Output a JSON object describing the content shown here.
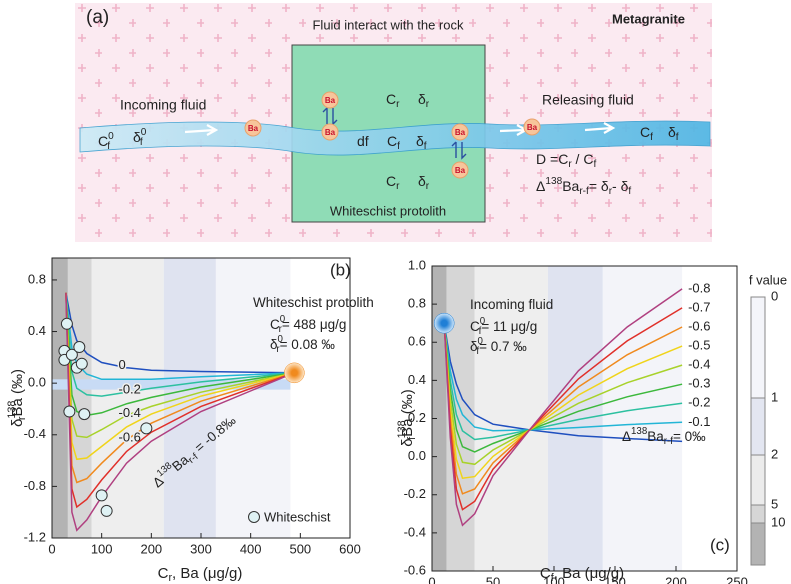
{
  "diagram": {
    "label": "(a)",
    "title": "Fluid interact with the rock",
    "host": "Metagranite",
    "incoming": "Incoming fluid",
    "releasing": "Releasing fluid",
    "box_label": "Whiteschist protolith",
    "ba": "Ba",
    "symbols": [
      [
        {
          "base": "C",
          "sup": "0",
          "sub": "f"
        }
      ],
      [
        {
          "base": "δ",
          "sup": "0",
          "sub": "f"
        }
      ],
      [
        {
          "base": "C",
          "sub": "r"
        }
      ],
      [
        {
          "base": "δ",
          "sub": "r"
        }
      ],
      [
        {
          "base": "df"
        }
      ],
      [
        {
          "base": "C",
          "sub": "f"
        }
      ],
      [
        {
          "base": "δ",
          "sub": "f"
        }
      ],
      [
        {
          "base": "C",
          "sub": "r"
        }
      ],
      [
        {
          "base": "δ",
          "sub": "r"
        }
      ],
      [
        {
          "base": "C",
          "sub": "f"
        }
      ],
      [
        {
          "base": "δ",
          "sub": "f"
        }
      ],
      [
        {
          "base": "D ="
        },
        {
          "base": "C",
          "sub": "r"
        },
        {
          "base": " / C",
          "sub": "f"
        }
      ],
      [
        {
          "base": "Δ",
          "sup": "138"
        },
        {
          "base": "Ba",
          "sub": "r-f"
        },
        {
          "base": "= δ",
          "sub": "r"
        },
        {
          "base": "- δ",
          "sub": "f"
        }
      ]
    ]
  },
  "chart_data": [
    {
      "type": "line",
      "panel": "(b)",
      "x_label": [
        {
          "base": "C",
          "sub": "r"
        },
        {
          "base": ", Ba (μg/g)"
        }
      ],
      "y_label": [
        {
          "base": "δ",
          "sup": "138",
          "sub": "r"
        },
        {
          "base": "Ba (‰)"
        }
      ],
      "xlim": [
        0,
        600
      ],
      "ylim": [
        -1.2,
        0.97
      ],
      "xticks": [
        0,
        100,
        200,
        300,
        400,
        500,
        600
      ],
      "yticks": [
        -1.2,
        -0.8,
        -0.4,
        {
          "value": 0,
          "label": "0.0"
        },
        0.4,
        0.8
      ],
      "bands": [
        {
          "x": [
            0,
            32
          ],
          "color": "#b3b3b3"
        },
        {
          "x": [
            32,
            80
          ],
          "color": "#d6d6d6"
        },
        {
          "x": [
            80,
            225
          ],
          "color": "#eeeeee"
        },
        {
          "x": [
            225,
            330
          ],
          "color": "#dfe3f0"
        },
        {
          "x": [
            330,
            480
          ],
          "color": "#f3f4f9"
        }
      ],
      "hband": {
        "x": [
          0,
          480
        ],
        "y": [
          -0.05,
          0.03
        ],
        "color": "#c8dbf5"
      },
      "x": [
        28,
        40,
        50,
        70,
        100,
        150,
        200,
        300,
        488
      ],
      "series": [
        {
          "name": "0",
          "color": "#1f4fbf",
          "values": [
            0.7,
            0.45,
            0.33,
            0.23,
            0.16,
            0.12,
            0.1,
            0.09,
            0.08
          ]
        },
        {
          "color": "#22b5d6",
          "values": [
            0.7,
            0.27,
            0.15,
            0.07,
            0.03,
            0.03,
            0.03,
            0.05,
            0.08
          ]
        },
        {
          "name": "-0.2",
          "color": "#2cc0a0",
          "values": [
            0.7,
            0.09,
            -0.04,
            -0.09,
            -0.1,
            -0.07,
            -0.04,
            0.01,
            0.08
          ]
        },
        {
          "color": "#3cb83c",
          "values": [
            0.7,
            -0.09,
            -0.22,
            -0.25,
            -0.23,
            -0.16,
            -0.11,
            -0.03,
            0.08
          ]
        },
        {
          "name": "-0.4",
          "color": "#a8d22a",
          "values": [
            0.7,
            -0.28,
            -0.41,
            -0.42,
            -0.36,
            -0.25,
            -0.18,
            -0.07,
            0.08
          ]
        },
        {
          "color": "#f0d41a",
          "values": [
            0.7,
            -0.46,
            -0.59,
            -0.58,
            -0.49,
            -0.34,
            -0.24,
            -0.1,
            0.08
          ]
        },
        {
          "name": "-0.6",
          "color": "#f08a1e",
          "values": [
            0.7,
            -0.64,
            -0.77,
            -0.74,
            -0.62,
            -0.44,
            -0.31,
            -0.14,
            0.08
          ]
        },
        {
          "color": "#e0302a",
          "values": [
            0.7,
            -0.82,
            -0.96,
            -0.9,
            -0.75,
            -0.53,
            -0.38,
            -0.18,
            0.08
          ]
        },
        {
          "color": "#b04080",
          "values": [
            0.7,
            -1.0,
            -1.14,
            -1.06,
            -0.88,
            -0.62,
            -0.45,
            -0.22,
            0.08
          ]
        }
      ],
      "points": {
        "name": "Whiteschist",
        "color": "#dff2f4",
        "x": [
          30,
          25,
          25,
          40,
          50,
          55,
          60,
          35,
          65,
          190,
          100,
          110
        ],
        "y": [
          0.46,
          0.25,
          0.18,
          0.22,
          0.12,
          0.28,
          0.15,
          -0.22,
          -0.24,
          -0.35,
          -0.87,
          -0.99
        ]
      },
      "highlight": {
        "x": 488,
        "y": 0.08,
        "color": "#f08a1e"
      },
      "annotations": [
        [
          {
            "base": "Whiteschist protolith"
          }
        ],
        [
          {
            "base": "C",
            "sup": "0",
            "sub": "r"
          },
          {
            "base": "= 488 μg/g"
          }
        ],
        [
          {
            "base": "δ",
            "sup": "0",
            "sub": "r"
          },
          {
            "base": "= 0.08 ‰"
          }
        ],
        [
          {
            "base": "Δ",
            "sup": "138"
          },
          {
            "base": "Ba",
            "sub": "r-f"
          },
          {
            "base": " = -0.8‰"
          }
        ]
      ]
    },
    {
      "type": "line",
      "panel": "(c)",
      "x_label": [
        {
          "base": "C",
          "sub": "f"
        },
        {
          "base": ", Ba (μg/g)"
        }
      ],
      "y_label": [
        {
          "base": "δ",
          "sup": "138",
          "sub": "f"
        },
        {
          "base": "Ba (‰)"
        }
      ],
      "xlim": [
        0,
        250
      ],
      "ylim": [
        -0.6,
        1.0
      ],
      "xticks": [
        0,
        50,
        100,
        150,
        200,
        250
      ],
      "yticks": [
        -0.6,
        -0.4,
        -0.2,
        {
          "value": 0,
          "label": "0.0"
        },
        0.2,
        0.4,
        0.6,
        0.8,
        {
          "value": 1,
          "label": "1.0"
        }
      ],
      "bands": [
        {
          "x": [
            0,
            12
          ],
          "color": "#b3b3b3"
        },
        {
          "x": [
            12,
            35
          ],
          "color": "#d6d6d6"
        },
        {
          "x": [
            35,
            95
          ],
          "color": "#eeeeee"
        },
        {
          "x": [
            95,
            140
          ],
          "color": "#dfe3f0"
        },
        {
          "x": [
            140,
            205
          ],
          "color": "#f3f4f9"
        }
      ],
      "x": [
        10,
        15,
        20,
        25,
        35,
        50,
        80,
        120,
        160,
        205
      ],
      "series": [
        {
          "color": "#1f4fbf",
          "values": [
            0.7,
            0.5,
            0.38,
            0.3,
            0.22,
            0.17,
            0.14,
            0.11,
            0.095,
            0.08
          ]
        },
        {
          "name": "-0.1",
          "color": "#22b5d6",
          "values": [
            0.7,
            0.45,
            0.3,
            0.22,
            0.155,
            0.136,
            0.14,
            0.153,
            0.168,
            0.18
          ]
        },
        {
          "name": "-0.2",
          "color": "#2cc0a0",
          "values": [
            0.7,
            0.4,
            0.22,
            0.135,
            0.09,
            0.102,
            0.14,
            0.195,
            0.241,
            0.28
          ]
        },
        {
          "name": "-0.3",
          "color": "#3cb83c",
          "values": [
            0.7,
            0.35,
            0.144,
            0.052,
            0.025,
            0.069,
            0.14,
            0.238,
            0.314,
            0.38
          ]
        },
        {
          "name": "-0.4",
          "color": "#a8d22a",
          "values": [
            0.7,
            0.3,
            0.065,
            -0.03,
            -0.04,
            0.035,
            0.14,
            0.28,
            0.388,
            0.48
          ]
        },
        {
          "name": "-0.5",
          "color": "#f0d41a",
          "values": [
            0.7,
            0.25,
            -0.014,
            -0.113,
            -0.105,
            0.001,
            0.14,
            0.323,
            0.461,
            0.58
          ]
        },
        {
          "name": "-0.6",
          "color": "#f08a1e",
          "values": [
            0.7,
            0.2,
            -0.093,
            -0.195,
            -0.17,
            -0.033,
            0.14,
            0.365,
            0.534,
            0.68
          ]
        },
        {
          "name": "-0.7",
          "color": "#e0302a",
          "values": [
            0.7,
            0.15,
            -0.171,
            -0.278,
            -0.235,
            -0.066,
            0.14,
            0.408,
            0.607,
            0.78
          ]
        },
        {
          "name": "-0.8",
          "color": "#b04080",
          "values": [
            0.7,
            0.1,
            -0.25,
            -0.36,
            -0.3,
            -0.1,
            0.14,
            0.45,
            0.68,
            0.88
          ]
        }
      ],
      "highlight": {
        "x": 10,
        "y": 0.7,
        "color": "#1f7fd6"
      },
      "annotations": [
        [
          {
            "base": "Incoming fluid"
          }
        ],
        [
          {
            "base": "C",
            "sup": "0",
            "sub": "f"
          },
          {
            "base": "= 11 μg/g"
          }
        ],
        [
          {
            "base": "δ",
            "sup": "0",
            "sub": "f"
          },
          {
            "base": "= 0.7 ‰"
          }
        ],
        [
          {
            "base": "Δ",
            "sup": "138"
          },
          {
            "base": "Ba",
            "sub": "r-f"
          },
          {
            "base": "= 0‰"
          }
        ]
      ]
    }
  ],
  "colorbar": {
    "title": "f value",
    "ticks": [
      0,
      1,
      2,
      5,
      10
    ],
    "colors": [
      "#f4f5fa",
      "#e3e6f1",
      "#ececec",
      "#d6d6d6",
      "#b3b3b3"
    ]
  }
}
